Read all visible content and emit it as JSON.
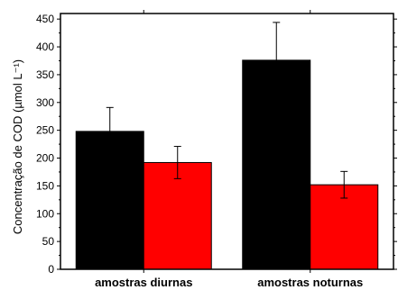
{
  "chart_data": {
    "type": "bar",
    "title": "",
    "xlabel": "",
    "ylabel": "Concentração de COD (µmol L⁻¹)",
    "ylim": [
      0,
      460
    ],
    "yticks": [
      0,
      50,
      100,
      150,
      200,
      250,
      300,
      350,
      400,
      450
    ],
    "categories": [
      "amostras diurnas",
      "amostras noturnas"
    ],
    "series": [
      {
        "color": "#000000",
        "values": [
          248,
          376
        ],
        "errors": [
          43,
          68
        ]
      },
      {
        "color": "#ff0000",
        "values": [
          192,
          152
        ],
        "errors": [
          29,
          24
        ]
      }
    ],
    "grid": false,
    "legend": "none"
  }
}
